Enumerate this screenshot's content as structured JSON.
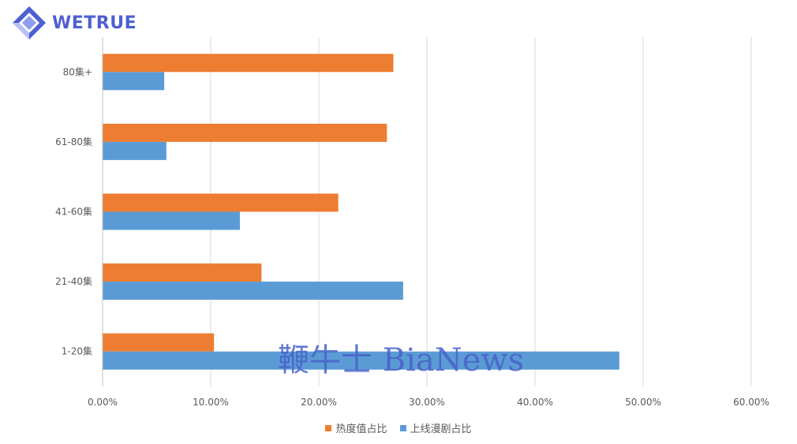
{
  "logo": {
    "text": "WETRUE",
    "icon": "diamond-logo-icon",
    "color": "#4d5fd1"
  },
  "watermark": {
    "text": "鞭牛士 BiaNews"
  },
  "chart_data": {
    "type": "bar",
    "orientation": "horizontal",
    "categories": [
      "80集+",
      "61-80集",
      "41-60集",
      "21-40集",
      "1-20集"
    ],
    "series": [
      {
        "name": "热度值占比",
        "color": "#ed7d31",
        "values": [
          26.9,
          26.3,
          21.8,
          14.7,
          10.3
        ]
      },
      {
        "name": "上线漫剧占比",
        "color": "#5b9bd5",
        "values": [
          5.7,
          5.9,
          12.7,
          27.8,
          47.8
        ]
      }
    ],
    "x_ticks": [
      "0.00%",
      "10.00%",
      "20.00%",
      "30.00%",
      "40.00%",
      "50.00%",
      "60.00%"
    ],
    "xlim": [
      0,
      60
    ],
    "grid": true,
    "legend": "bottom-center",
    "title": "",
    "xlabel": "",
    "ylabel": ""
  }
}
